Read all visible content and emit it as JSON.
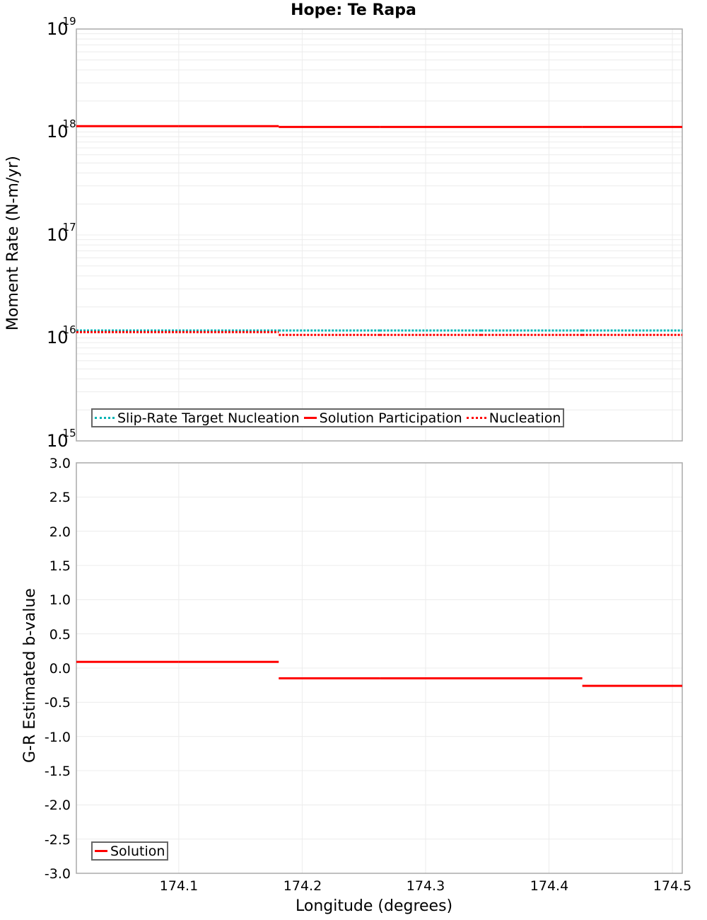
{
  "title": "Hope: Te Rapa",
  "chart_data": [
    {
      "type": "line",
      "title": "Hope: Te Rapa",
      "xlabel": "Longitude (degrees)",
      "ylabel": "Moment Rate (N-m/yr)",
      "yscale": "log",
      "ylim": [
        1000000000000000.0,
        1e+19
      ],
      "xlim": [
        174.017,
        174.508
      ],
      "y_ticks": [
        "10^15",
        "10^16",
        "10^17",
        "10^18",
        "10^19"
      ],
      "grid": true,
      "legend_position": "bottom-left inside",
      "segment_bounds": [
        174.017,
        174.1,
        174.181,
        174.263,
        174.345,
        174.427,
        174.508
      ],
      "series": [
        {
          "name": "Slip-Rate Target Nucleation",
          "style": "dotted",
          "color": "#00b4b4",
          "values": [
            1.18e+16,
            1.18e+16,
            1.18e+16,
            1.18e+16,
            1.18e+16,
            1.18e+16
          ]
        },
        {
          "name": "Solution Participation",
          "style": "solid",
          "color": "#ff0000",
          "values": [
            1.14e+18,
            1.14e+18,
            1.12e+18,
            1.12e+18,
            1.12e+18,
            1.12e+18
          ]
        },
        {
          "name": "Nucleation",
          "style": "dotted",
          "color": "#ff0000",
          "values": [
            1.14e+16,
            1.14e+16,
            1.07e+16,
            1.07e+16,
            1.07e+16,
            1.07e+16
          ]
        }
      ]
    },
    {
      "type": "line",
      "xlabel": "Longitude (degrees)",
      "ylabel": "G-R Estimated b-value",
      "ylim": [
        -3.0,
        3.0
      ],
      "xlim": [
        174.017,
        174.508
      ],
      "x_ticks": [
        "174.1",
        "174.2",
        "174.3",
        "174.4",
        "174.5"
      ],
      "y_ticks": [
        "3.0",
        "2.5",
        "2.0",
        "1.5",
        "1.0",
        "0.5",
        "0.0",
        "-0.5",
        "-1.0",
        "-1.5",
        "-2.0",
        "-2.5",
        "-3.0"
      ],
      "grid": true,
      "legend_position": "bottom-left inside",
      "segment_bounds": [
        174.017,
        174.1,
        174.181,
        174.263,
        174.345,
        174.427,
        174.508
      ],
      "series": [
        {
          "name": "Solution",
          "style": "solid",
          "color": "#ff0000",
          "values": [
            0.09,
            0.09,
            -0.15,
            -0.15,
            -0.15,
            -0.26
          ]
        }
      ]
    }
  ],
  "top": {
    "ylabel": "Moment Rate (N-m/yr)",
    "yticks": [
      {
        "base": "10",
        "exp": "19"
      },
      {
        "base": "10",
        "exp": "18"
      },
      {
        "base": "10",
        "exp": "17"
      },
      {
        "base": "10",
        "exp": "16"
      },
      {
        "base": "10",
        "exp": "15"
      }
    ],
    "legend": [
      "Slip-Rate Target Nucleation",
      "Solution Participation",
      "Nucleation"
    ]
  },
  "bottom": {
    "ylabel": "G-R Estimated b-value",
    "yticks": [
      "3.0",
      "2.5",
      "2.0",
      "1.5",
      "1.0",
      "0.5",
      "0.0",
      "-0.5",
      "-1.0",
      "-1.5",
      "-2.0",
      "-2.5",
      "-3.0"
    ],
    "legend": [
      "Solution"
    ]
  },
  "xaxis": {
    "label": "Longitude (degrees)",
    "ticks": [
      "174.1",
      "174.2",
      "174.3",
      "174.4",
      "174.5"
    ]
  }
}
